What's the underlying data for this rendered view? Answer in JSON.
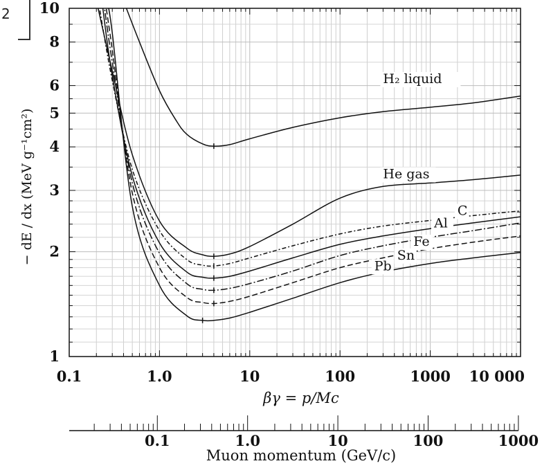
{
  "corner_label": "2",
  "chart_data": {
    "type": "line",
    "xscale": "log",
    "yscale": "log",
    "xlim": [
      0.1,
      10000
    ],
    "ylim": [
      1,
      10
    ],
    "grid": true,
    "xlabel": "βγ = p/Mc",
    "ylabel": "− dE / dx (MeV g⁻¹cm²)",
    "x_ticks": [
      {
        "value": 0.1,
        "label": "0.1"
      },
      {
        "value": 1,
        "label": "1.0"
      },
      {
        "value": 10,
        "label": "10"
      },
      {
        "value": 100,
        "label": "100"
      },
      {
        "value": 1000,
        "label": "1000"
      },
      {
        "value": 10000,
        "label": "10 000"
      }
    ],
    "y_ticks": [
      {
        "value": 1,
        "label": "1"
      },
      {
        "value": 2,
        "label": "2"
      },
      {
        "value": 3,
        "label": "3"
      },
      {
        "value": 4,
        "label": "4"
      },
      {
        "value": 5,
        "label": "5"
      },
      {
        "value": 6,
        "label": "6"
      },
      {
        "value": 8,
        "label": "8"
      },
      {
        "value": 10,
        "label": "10"
      }
    ],
    "secondary_axis": {
      "xlabel": "Muon momentum (GeV/c)",
      "ticks": [
        {
          "value": 0.1,
          "label": "0.1"
        },
        {
          "value": 1,
          "label": "1.0"
        },
        {
          "value": 10,
          "label": "10"
        },
        {
          "value": 100,
          "label": "100"
        },
        {
          "value": 1000,
          "label": "1000"
        }
      ]
    },
    "series": [
      {
        "name": "H₂ liquid",
        "dash": "solid",
        "x": [
          0.4,
          0.6,
          1,
          1.5,
          2,
          3,
          4,
          6,
          10,
          30,
          100,
          300,
          1000,
          3000,
          10000
        ],
        "y": [
          10.5,
          8.0,
          5.8,
          4.8,
          4.35,
          4.08,
          4.02,
          4.06,
          4.22,
          4.55,
          4.85,
          5.05,
          5.2,
          5.35,
          5.6
        ],
        "label_at": [
          300,
          6.1
        ]
      },
      {
        "name": "He gas",
        "dash": "solid",
        "x": [
          0.2,
          0.3,
          0.5,
          1,
          2,
          3,
          4,
          6,
          10,
          30,
          100,
          300,
          1000,
          3000,
          10000
        ],
        "y": [
          10.5,
          6.6,
          3.8,
          2.45,
          2.05,
          1.96,
          1.94,
          1.97,
          2.07,
          2.4,
          2.85,
          3.08,
          3.15,
          3.22,
          3.32
        ],
        "label_at": [
          300,
          3.25
        ]
      },
      {
        "name": "C",
        "dash": "6,3,2,3",
        "x": [
          0.21,
          0.3,
          0.5,
          1,
          2,
          3,
          4,
          6,
          10,
          30,
          100,
          300,
          1000,
          3000,
          10000
        ],
        "y": [
          10.5,
          6.2,
          3.45,
          2.3,
          1.9,
          1.83,
          1.82,
          1.85,
          1.92,
          2.08,
          2.25,
          2.37,
          2.46,
          2.54,
          2.62
        ],
        "label_at": [
          2000,
          2.55
        ]
      },
      {
        "name": "Al",
        "dash": "solid",
        "x": [
          0.23,
          0.3,
          0.5,
          1,
          2,
          3,
          4,
          6,
          10,
          30,
          100,
          300,
          1000,
          3000,
          10000
        ],
        "y": [
          10.5,
          6.4,
          3.3,
          2.12,
          1.75,
          1.69,
          1.68,
          1.7,
          1.76,
          1.92,
          2.1,
          2.22,
          2.33,
          2.42,
          2.52
        ],
        "label_at": [
          1100,
          2.35
        ]
      },
      {
        "name": "Fe",
        "dash": "10,3,2,3",
        "x": [
          0.24,
          0.3,
          0.5,
          1,
          2,
          3,
          4,
          6,
          10,
          30,
          100,
          300,
          1000,
          3000,
          10000
        ],
        "y": [
          10.5,
          7.0,
          3.15,
          1.98,
          1.62,
          1.56,
          1.55,
          1.57,
          1.62,
          1.76,
          1.95,
          2.08,
          2.2,
          2.3,
          2.42
        ],
        "label_at": [
          650,
          2.08
        ]
      },
      {
        "name": "Sn",
        "dash": "8,4",
        "x": [
          0.25,
          0.3,
          0.5,
          1,
          2,
          3,
          4,
          6,
          10,
          30,
          100,
          300,
          1000,
          3000,
          10000
        ],
        "y": [
          10.5,
          7.6,
          2.95,
          1.8,
          1.48,
          1.43,
          1.42,
          1.44,
          1.49,
          1.63,
          1.8,
          1.92,
          2.04,
          2.13,
          2.22
        ],
        "label_at": [
          430,
          1.9
        ]
      },
      {
        "name": "Pb",
        "dash": "solid",
        "x": [
          0.26,
          0.3,
          0.5,
          1,
          2,
          3,
          4,
          6,
          10,
          30,
          100,
          300,
          1000,
          3000,
          10000
        ],
        "y": [
          10.5,
          8.5,
          2.7,
          1.6,
          1.31,
          1.27,
          1.27,
          1.29,
          1.34,
          1.47,
          1.63,
          1.75,
          1.85,
          1.92,
          1.99
        ],
        "label_at": [
          240,
          1.77
        ]
      }
    ]
  }
}
